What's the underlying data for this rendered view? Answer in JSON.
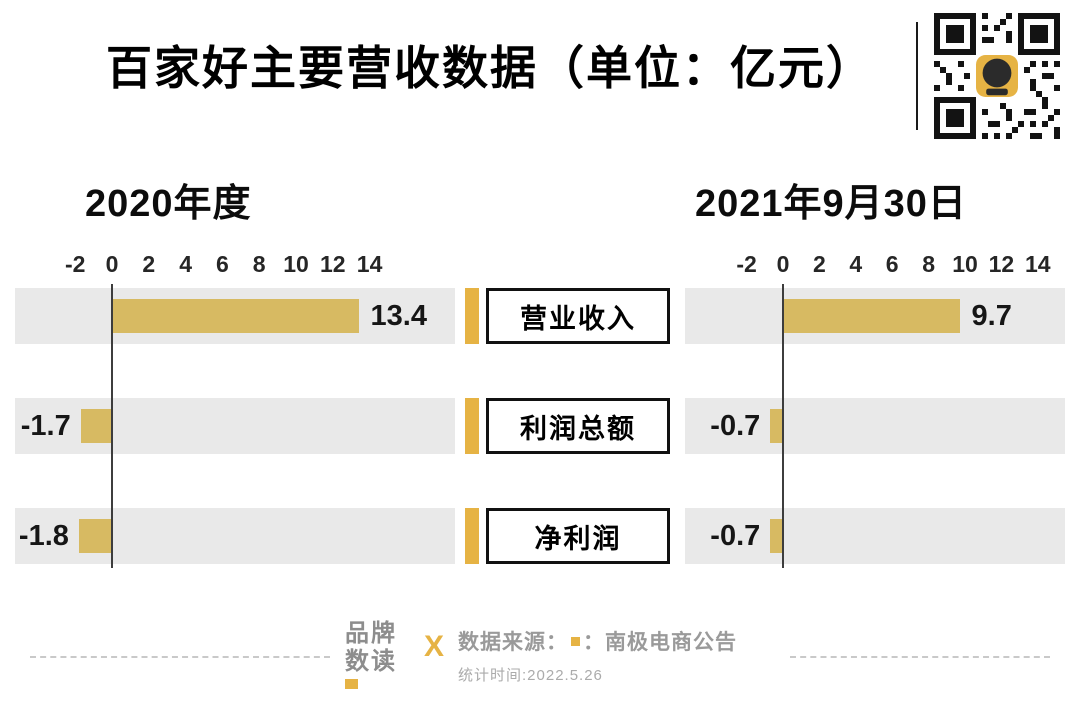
{
  "title": "百家好主要营收数据（单位：亿元）",
  "categories": [
    "营业收入",
    "利润总额",
    "净利润"
  ],
  "chart_data": [
    {
      "type": "bar",
      "orientation": "horizontal",
      "title": "2020年度",
      "categories": [
        "营业收入",
        "利润总额",
        "净利润"
      ],
      "values": [
        13.4,
        -1.7,
        -1.8
      ],
      "labels": [
        "13.4",
        "-1.7",
        "-1.8"
      ],
      "axis_ticks": [
        "-2",
        "0",
        "2",
        "4",
        "6",
        "8",
        "10",
        "12",
        "14"
      ],
      "xlim": [
        -2,
        14
      ],
      "unit": "亿元",
      "grid": false,
      "legend": false
    },
    {
      "type": "bar",
      "orientation": "horizontal",
      "title": "2021年9月30日",
      "categories": [
        "营业收入",
        "利润总额",
        "净利润"
      ],
      "values": [
        9.7,
        -0.7,
        -0.7
      ],
      "labels": [
        "9.7",
        "-0.7",
        "-0.7"
      ],
      "axis_ticks": [
        "-2",
        "0",
        "2",
        "4",
        "6",
        "8",
        "10",
        "12",
        "14"
      ],
      "xlim": [
        -2,
        14
      ],
      "unit": "亿元",
      "grid": false,
      "legend": false
    }
  ],
  "footer": {
    "brand_line1": "品牌",
    "brand_line2": "数读",
    "divider": "X",
    "source_label": "数据来源：",
    "source_sep": "：",
    "source_value": "南极电商公告",
    "timestamp": "统计时间:2022.5.26"
  },
  "colors": {
    "bar": "#d7ba62",
    "accent": "#e6b344",
    "row_background": "#e9e9e9",
    "footer_text": "#9a9a9a"
  }
}
